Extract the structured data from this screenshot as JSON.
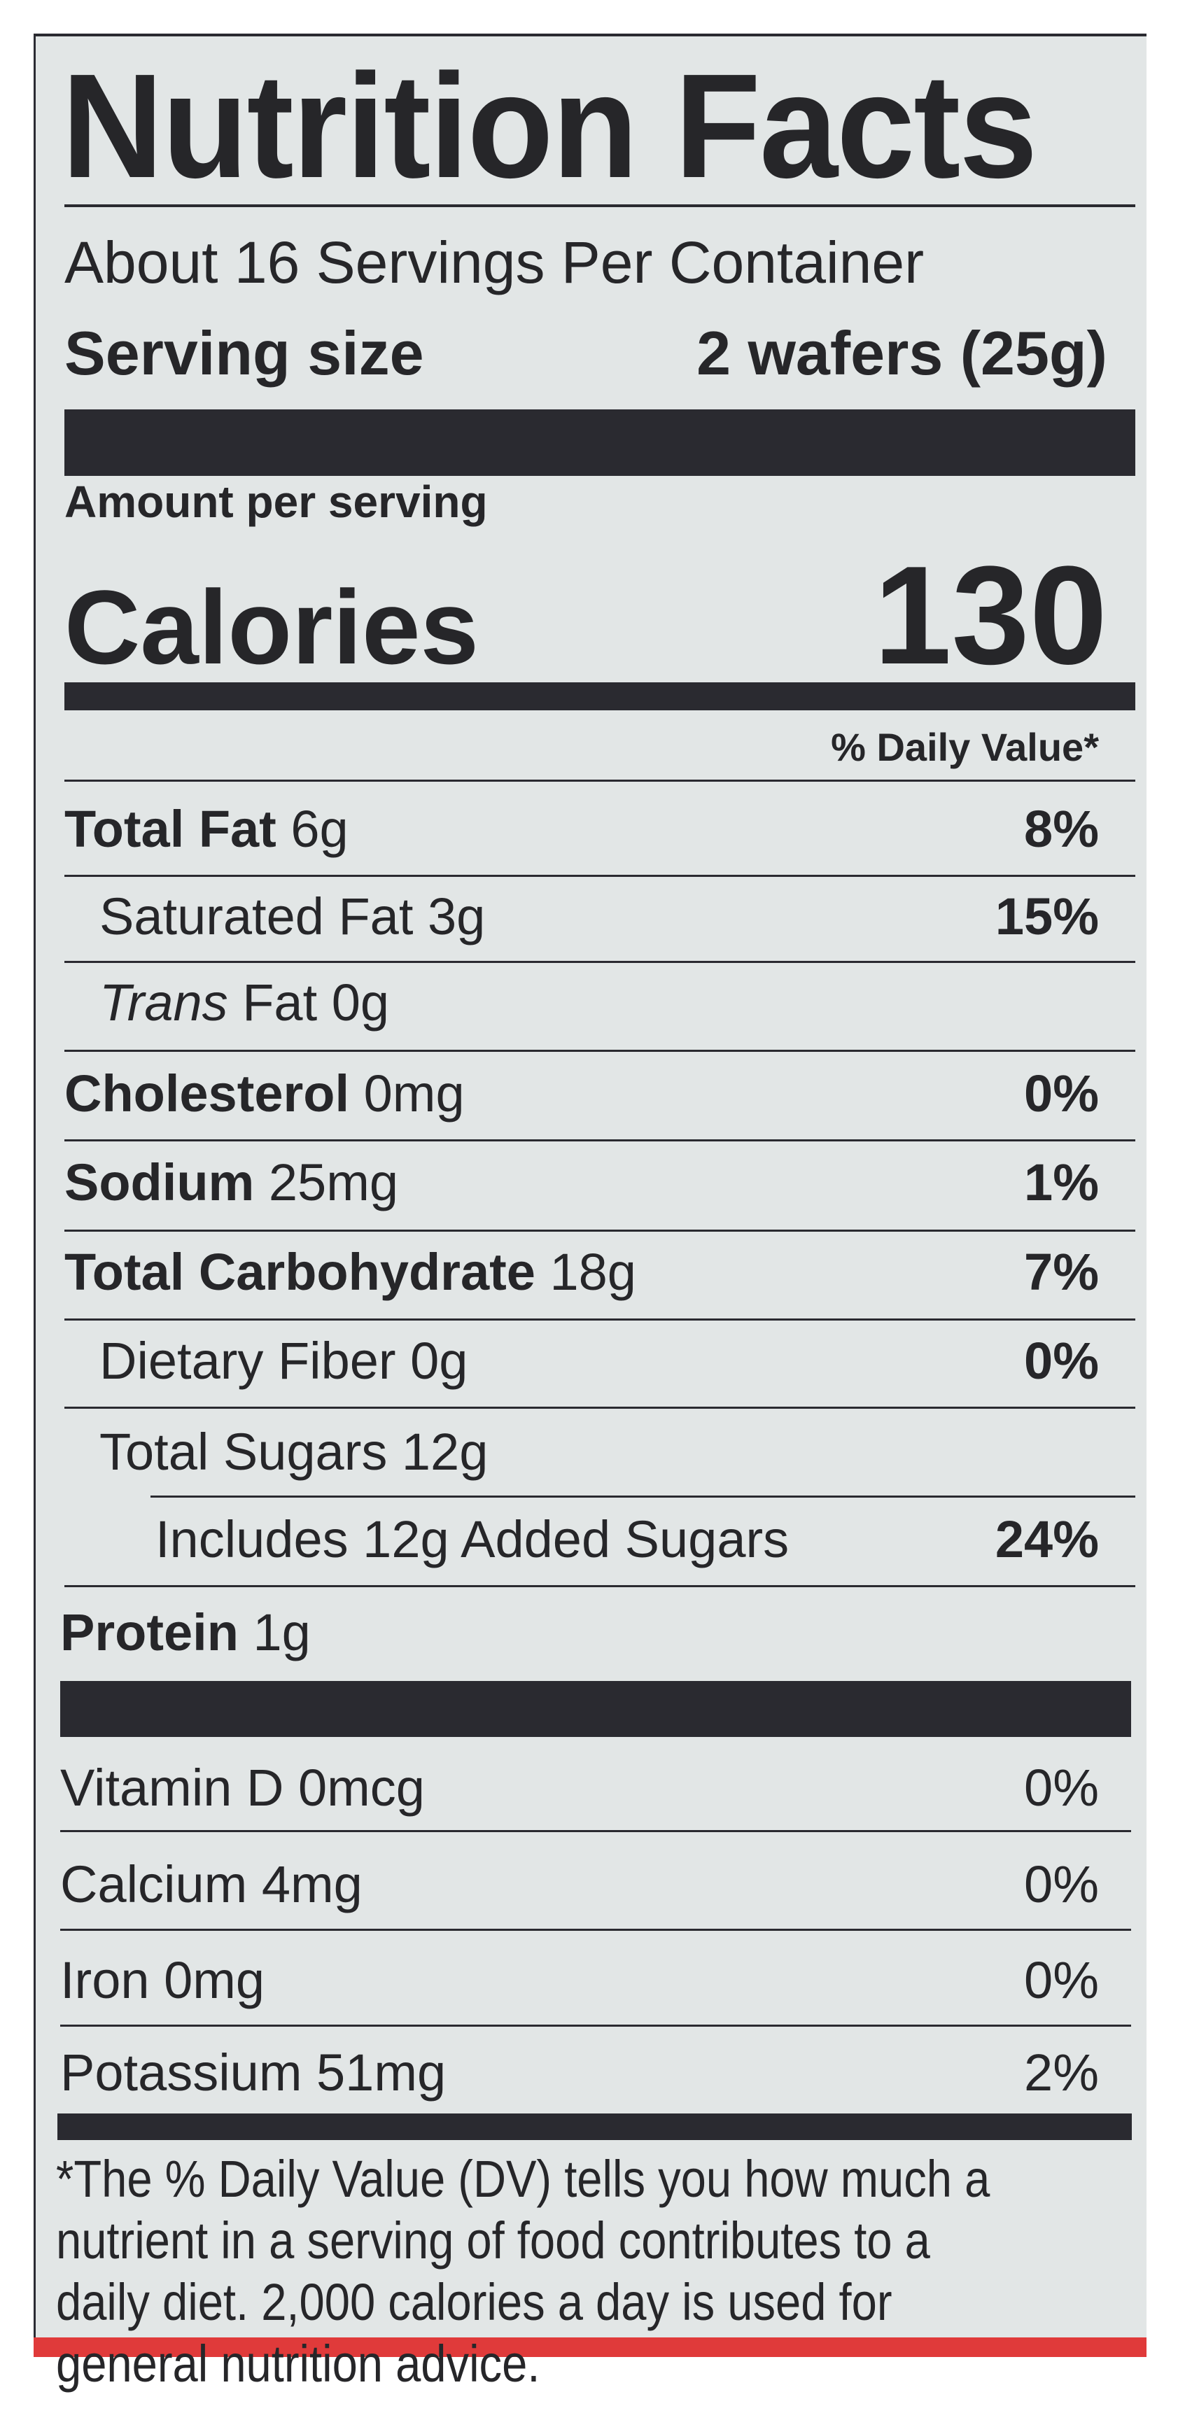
{
  "title": "Nutrition Facts",
  "servings_per_container": "About 16 Servings Per Container",
  "serving_size": {
    "label": "Serving size",
    "value": "2 wafers (25g)"
  },
  "amount_per_serving": "Amount per serving",
  "calories": {
    "label": "Calories",
    "value": "130"
  },
  "daily_value_header": "% Daily Value*",
  "nutrients": [
    {
      "name": "Total Fat",
      "amount": "6g",
      "dv": "8%"
    },
    {
      "name": "Saturated Fat",
      "amount": "3g",
      "dv": "15%"
    },
    {
      "name": "Trans",
      "name_rest": " Fat",
      "amount": "0g",
      "dv": ""
    },
    {
      "name": "Cholesterol",
      "amount": "0mg",
      "dv": "0%"
    },
    {
      "name": "Sodium",
      "amount": "25mg",
      "dv": "1%"
    },
    {
      "name": "Total Carbohydrate",
      "amount": "18g",
      "dv": "7%"
    },
    {
      "name": "Dietary Fiber",
      "amount": "0g",
      "dv": "0%"
    },
    {
      "name": "Total Sugars",
      "amount": "12g",
      "dv": ""
    },
    {
      "name": "Includes 12g Added Sugars",
      "amount": "",
      "dv": "24%"
    },
    {
      "name": "Protein",
      "amount": "1g",
      "dv": ""
    }
  ],
  "vitamins": [
    {
      "name": "Vitamin D",
      "amount": "0mcg",
      "dv": "0%"
    },
    {
      "name": "Calcium",
      "amount": "4mg",
      "dv": "0%"
    },
    {
      "name": "Iron",
      "amount": "0mg",
      "dv": "0%"
    },
    {
      "name": "Potassium",
      "amount": "51mg",
      "dv": "2%"
    }
  ],
  "footnote": "*The % Daily Value (DV) tells you how much a nutrient in a serving of food contributes to a daily diet. 2,000 calories a day is used for general nutrition advice.",
  "colors": {
    "label_bg": "#e2e6e6",
    "text": "#262629",
    "accent_red": "#e03a3a"
  }
}
